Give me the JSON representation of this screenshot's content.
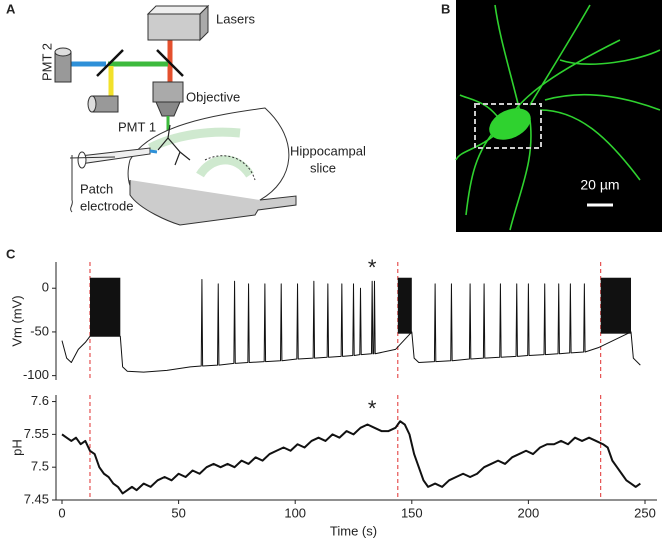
{
  "panels": {
    "a": {
      "letter": "A",
      "labels": {
        "lasers": "Lasers",
        "pmt2": "PMT 2",
        "pmt1": "PMT 1",
        "objective": "Objective",
        "patch": [
          "Patch",
          "electrode"
        ],
        "slice": [
          "Hippocampal",
          "slice"
        ]
      }
    },
    "b": {
      "letter": "B",
      "scale_bar": "20 µm"
    },
    "c": {
      "letter": "C"
    }
  },
  "chart_data": [
    {
      "type": "line",
      "ylabel": "Vm (mV)",
      "xlim": [
        0,
        250
      ],
      "ylim": [
        -105,
        30
      ],
      "yticks": [
        0,
        -50,
        -100
      ],
      "vlines": [
        12,
        144,
        231
      ],
      "vline_color": "#e03030",
      "annotations": [
        {
          "text": "*",
          "x": 133,
          "y": 22
        }
      ],
      "bursts": [
        {
          "x": [
            12,
            25
          ],
          "range": [
            -55,
            12
          ]
        },
        {
          "x": [
            144,
            150
          ],
          "range": [
            -52,
            12
          ]
        },
        {
          "x": [
            231,
            244
          ],
          "range": [
            -52,
            12
          ]
        }
      ],
      "series": [
        {
          "name": "Vm",
          "color": "#111111",
          "x": [
            0,
            2,
            4,
            7,
            10,
            12,
            25,
            26,
            28,
            35,
            45,
            55,
            59.7,
            60,
            60.3,
            66.7,
            67,
            67.3,
            73.7,
            74,
            74.3,
            79.7,
            80,
            80.3,
            86.7,
            87,
            87.3,
            93.7,
            94,
            94.3,
            100.7,
            101,
            101.3,
            107.7,
            108,
            108.3,
            113.7,
            114,
            114.3,
            119.7,
            120,
            120.3,
            124.7,
            125,
            125.3,
            127.7,
            128,
            128.3,
            132.7,
            133,
            133.3,
            133.7,
            134,
            134.3,
            143,
            150,
            151,
            153,
            159.7,
            160,
            160.3,
            166.7,
            167,
            167.3,
            174.7,
            175,
            175.3,
            180.7,
            181,
            181.3,
            187.7,
            188,
            188.3,
            194.7,
            195,
            195.3,
            199.7,
            200,
            200.3,
            206.7,
            207,
            207.3,
            212.7,
            213,
            213.3,
            217.7,
            218,
            218.3,
            223.7,
            224,
            224.3,
            230,
            244,
            245,
            248
          ],
          "values": [
            -60,
            -80,
            -85,
            -70,
            -62,
            -55,
            -55,
            -90,
            -95,
            -96,
            -94,
            -90,
            -89,
            10,
            -89,
            -88,
            5,
            -88,
            -86,
            8,
            -86,
            -85,
            5,
            -85,
            -84,
            5,
            -84,
            -83,
            5,
            -83,
            -81,
            5,
            -81,
            -80,
            8,
            -80,
            -79,
            5,
            -79,
            -78,
            5,
            -78,
            -77,
            5,
            -77,
            -76,
            0,
            -76,
            -75,
            8,
            -75,
            -75,
            8,
            -75,
            -70,
            -50,
            -80,
            -85,
            -84,
            5,
            -84,
            -83,
            5,
            -83,
            -81,
            5,
            -81,
            -80,
            5,
            -80,
            -79,
            5,
            -79,
            -78,
            5,
            -78,
            -77,
            5,
            -77,
            -76,
            5,
            -76,
            -75,
            5,
            -75,
            -74,
            5,
            -74,
            -73,
            5,
            -73,
            -68,
            -50,
            -80,
            -88
          ]
        }
      ]
    },
    {
      "type": "line",
      "ylabel": "pH",
      "xlabel": "Time (s)",
      "xlim": [
        0,
        250
      ],
      "ylim": [
        7.45,
        7.61
      ],
      "xticks": [
        0,
        50,
        100,
        150,
        200,
        250
      ],
      "yticks": [
        7.45,
        7.5,
        7.55,
        7.6
      ],
      "vlines": [
        12,
        144,
        231
      ],
      "vline_color": "#e03030",
      "annotations": [
        {
          "text": "*",
          "x": 133,
          "y": 7.587
        }
      ],
      "series": [
        {
          "name": "pH",
          "color": "#111111",
          "x": [
            0,
            2,
            4,
            6,
            8,
            10,
            12,
            14,
            16,
            18,
            20,
            22,
            24,
            26,
            28,
            30,
            32,
            35,
            38,
            41,
            44,
            47,
            50,
            53,
            56,
            59,
            62,
            65,
            68,
            71,
            74,
            77,
            80,
            83,
            86,
            89,
            92,
            95,
            98,
            101,
            104,
            107,
            110,
            113,
            116,
            119,
            122,
            125,
            128,
            131,
            134,
            137,
            140,
            143,
            145,
            147,
            149,
            151,
            153,
            155,
            157,
            160,
            163,
            166,
            169,
            172,
            175,
            178,
            181,
            184,
            187,
            190,
            193,
            196,
            199,
            202,
            205,
            208,
            211,
            214,
            217,
            220,
            223,
            226,
            229,
            232,
            234,
            236,
            238,
            240,
            242,
            244,
            246,
            248
          ],
          "values": [
            7.55,
            7.545,
            7.54,
            7.545,
            7.535,
            7.54,
            7.525,
            7.52,
            7.5,
            7.49,
            7.485,
            7.475,
            7.47,
            7.46,
            7.465,
            7.47,
            7.465,
            7.475,
            7.47,
            7.48,
            7.485,
            7.48,
            7.49,
            7.485,
            7.495,
            7.49,
            7.5,
            7.505,
            7.5,
            7.505,
            7.5,
            7.51,
            7.505,
            7.515,
            7.51,
            7.52,
            7.525,
            7.53,
            7.525,
            7.535,
            7.53,
            7.54,
            7.545,
            7.54,
            7.55,
            7.545,
            7.555,
            7.55,
            7.56,
            7.565,
            7.56,
            7.555,
            7.555,
            7.56,
            7.57,
            7.565,
            7.55,
            7.52,
            7.5,
            7.48,
            7.47,
            7.475,
            7.47,
            7.48,
            7.485,
            7.49,
            7.485,
            7.49,
            7.5,
            7.505,
            7.51,
            7.505,
            7.515,
            7.52,
            7.525,
            7.52,
            7.53,
            7.535,
            7.535,
            7.54,
            7.535,
            7.545,
            7.54,
            7.545,
            7.54,
            7.535,
            7.53,
            7.51,
            7.5,
            7.49,
            7.48,
            7.475,
            7.47,
            7.475
          ]
        }
      ]
    }
  ]
}
